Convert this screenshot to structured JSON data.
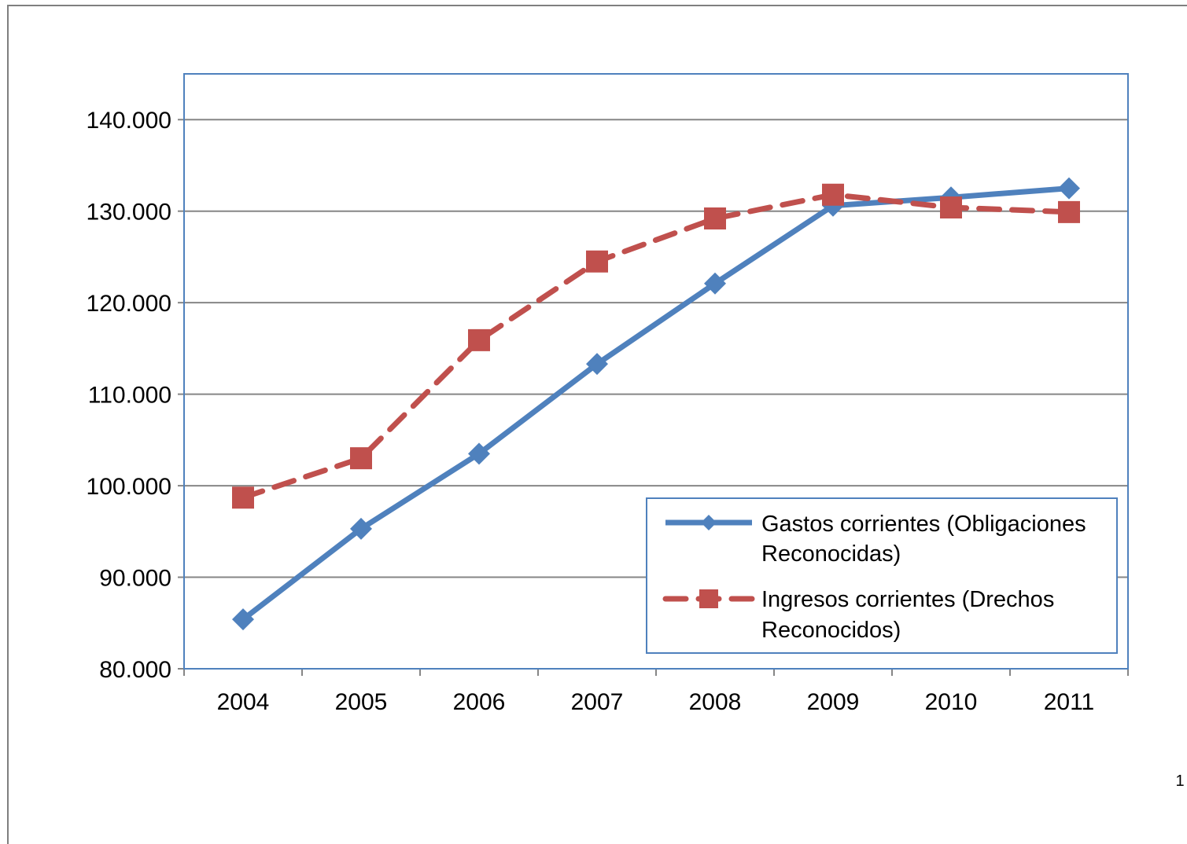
{
  "page": {
    "page_number": "1"
  },
  "chart_data": {
    "type": "line",
    "title": "",
    "xlabel": "",
    "ylabel": "",
    "categories": [
      "2004",
      "2005",
      "2006",
      "2007",
      "2008",
      "2009",
      "2010",
      "2011"
    ],
    "y_ticks": [
      80000,
      90000,
      100000,
      110000,
      120000,
      130000,
      140000
    ],
    "y_tick_labels": [
      "80.000",
      "90.000",
      "100.000",
      "110.000",
      "120.000",
      "130.000",
      "140.000"
    ],
    "ylim": [
      80000,
      145000
    ],
    "grid": "horizontal",
    "legend_position": "bottom-right inside plot",
    "series": [
      {
        "name_lines": [
          "Gastos corrientes (Obligaciones",
          "Reconocidas)"
        ],
        "values": [
          85400,
          95300,
          103500,
          113300,
          122100,
          130600,
          131500,
          132500
        ],
        "color": "#4F81BD",
        "marker": "diamond",
        "line_style": "solid"
      },
      {
        "name_lines": [
          "Ingresos corrientes (Drechos",
          "Reconocidos)"
        ],
        "values": [
          98700,
          103000,
          115900,
          124500,
          129200,
          131800,
          130400,
          129900
        ],
        "color": "#C0504D",
        "marker": "square",
        "line_style": "dashed"
      }
    ],
    "plot_border_color": "#4F81BD",
    "gridline_color": "#868686",
    "frame_color": "#7F7F7F"
  }
}
